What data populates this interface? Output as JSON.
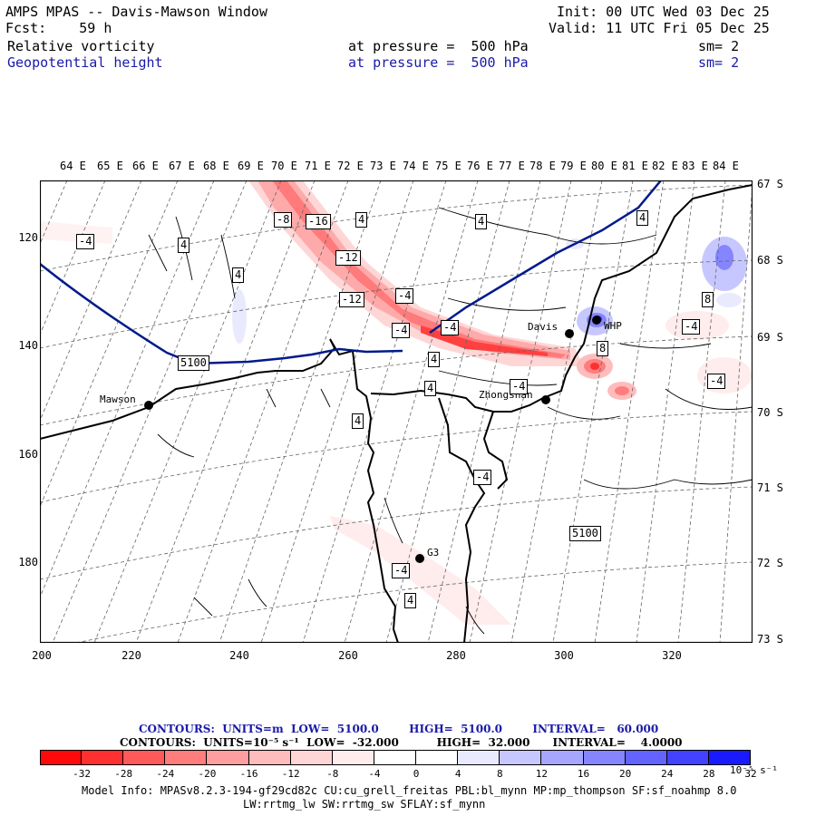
{
  "header": {
    "title": "AMPS MPAS -- Davis-Mawson Window",
    "forecast": "Fcst:    59 h",
    "init": "Init: 00 UTC Wed 03 Dec 25",
    "valid": "Valid: 11 UTC Fri 05 Dec 25",
    "field1": {
      "name": "Relative vorticity",
      "level": "at pressure =  500 hPa",
      "sm": "sm= 2"
    },
    "field2": {
      "name": "Geopotential height",
      "level": "at pressure =  500 hPa",
      "sm": "sm= 2"
    }
  },
  "map": {
    "lon_labels": [
      "64 E",
      "65 E",
      "66 E",
      "67 E",
      "68 E",
      "69 E",
      "70 E",
      "71 E",
      "72 E",
      "73 E",
      "74 E",
      "75 E",
      "76 E",
      "77 E",
      "78 E",
      "79 E",
      "80 E",
      "81 E",
      "82 E",
      "83 E",
      "84 E"
    ],
    "lat_labels": [
      "67 S",
      "68 S",
      "69 S",
      "70 S",
      "71 S",
      "72 S",
      "73 S"
    ],
    "y_ticks": [
      "120",
      "140",
      "160",
      "180"
    ],
    "x_ticks": [
      "200",
      "220",
      "240",
      "260",
      "280",
      "300",
      "320"
    ],
    "stations": [
      "Mawson",
      "Davis",
      "Zhongshan",
      "G3",
      "WHP"
    ],
    "contour_labels": [
      "-4",
      "4",
      "-8",
      "-16",
      "-12",
      "-12",
      "-4",
      "-4",
      "4",
      "4",
      "4",
      "4",
      "-4",
      "-4",
      "8",
      "8",
      "-4",
      "-4",
      "4",
      "4",
      "4",
      "-4",
      "-4",
      "4",
      "5100",
      "5100"
    ],
    "colors": {
      "positive": "#ff2020",
      "negative": "#2020ff",
      "height_contour": "#001a8c",
      "coast": "#000000"
    }
  },
  "contour_info": {
    "line1": "CONTOURS:  UNITS=m  LOW=  5100.0        HIGH=  5100.0        INTERVAL=   60.000",
    "line2": "CONTOURS:  UNITS=10⁻⁵ s⁻¹  LOW=  -32.000          HIGH=  32.000      INTERVAL=    4.0000"
  },
  "colorbar": {
    "labels": [
      "-32",
      "-28",
      "-24",
      "-20",
      "-16",
      "-12",
      "-8",
      "-4",
      "0",
      "4",
      "8",
      "12",
      "16",
      "20",
      "24",
      "28",
      "32"
    ],
    "unit": "10⁻⁵ s⁻¹",
    "colors": [
      "#ff0a0a",
      "#ff3030",
      "#ff5a5a",
      "#ff7d7d",
      "#ff9e9e",
      "#ffbcbc",
      "#ffd6d6",
      "#ffecec",
      "#ffffff",
      "#ffffff",
      "#eaeaff",
      "#c7c7ff",
      "#a6a6ff",
      "#8585ff",
      "#6363ff",
      "#4242ff",
      "#1a1aff"
    ]
  },
  "footer": {
    "line1": "Model Info: MPASv8.2.3-194-gf29cd82c CU:cu_grell_freitas PBL:bl_mynn MP:mp_thompson SF:sf_noahmp 8.0",
    "line2": "LW:rrtmg_lw SW:rrtmg_sw SFLAY:sf_mynn"
  }
}
